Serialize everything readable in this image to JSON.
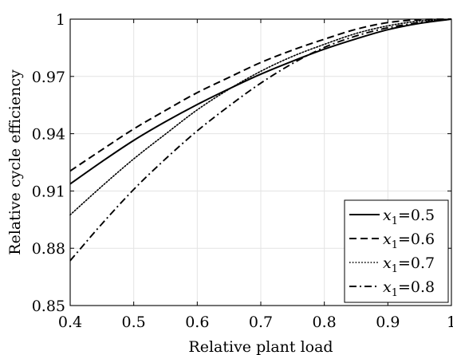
{
  "chart_data": {
    "type": "line",
    "xlabel": "Relative plant load",
    "ylabel": "Relative cycle efficiency",
    "xlim": [
      0.4,
      1.0
    ],
    "ylim": [
      0.85,
      1.0
    ],
    "x_ticks": [
      "0.4",
      "0.5",
      "0.6",
      "0.7",
      "0.8",
      "0.9",
      "1"
    ],
    "y_ticks": [
      "0.85",
      "0.88",
      "0.91",
      "0.94",
      "0.97",
      "1"
    ],
    "x_tick_values": [
      0.4,
      0.5,
      0.6,
      0.7,
      0.8,
      0.9,
      1.0
    ],
    "y_tick_values": [
      0.85,
      0.88,
      0.91,
      0.94,
      0.97,
      1.0
    ],
    "grid": true,
    "legend_position": "bottom-right",
    "series": [
      {
        "name": "x1=0.5",
        "legend_sub": "1",
        "legend_value": "=0.5",
        "line_style": "solid",
        "x": [
          0.4,
          0.45,
          0.5,
          0.55,
          0.6,
          0.65,
          0.7,
          0.75,
          0.8,
          0.85,
          0.9,
          0.95,
          1.0
        ],
        "y": [
          0.9137,
          0.9254,
          0.9365,
          0.9463,
          0.9553,
          0.9635,
          0.9712,
          0.978,
          0.9843,
          0.9897,
          0.9945,
          0.9978,
          1.0
        ]
      },
      {
        "name": "x1=0.6",
        "legend_sub": "1",
        "legend_value": "=0.6",
        "line_style": "dashed",
        "x": [
          0.4,
          0.45,
          0.5,
          0.55,
          0.6,
          0.65,
          0.7,
          0.75,
          0.8,
          0.85,
          0.9,
          0.95,
          1.0
        ],
        "y": [
          0.9205,
          0.9316,
          0.9425,
          0.9522,
          0.9615,
          0.9695,
          0.9773,
          0.9838,
          0.9895,
          0.9947,
          0.9982,
          0.9997,
          1.0
        ]
      },
      {
        "name": "x1=0.7",
        "legend_sub": "1",
        "legend_value": "=0.7",
        "line_style": "dotted",
        "x": [
          0.4,
          0.45,
          0.5,
          0.55,
          0.6,
          0.65,
          0.7,
          0.75,
          0.8,
          0.85,
          0.9,
          0.95,
          1.0
        ],
        "y": [
          0.8975,
          0.9125,
          0.9268,
          0.9398,
          0.9525,
          0.9633,
          0.9727,
          0.9805,
          0.9868,
          0.9925,
          0.9965,
          0.999,
          1.0
        ]
      },
      {
        "name": "x1=0.8",
        "legend_sub": "1",
        "legend_value": "=0.8",
        "line_style": "dashdot",
        "x": [
          0.4,
          0.45,
          0.5,
          0.55,
          0.6,
          0.65,
          0.7,
          0.75,
          0.8,
          0.85,
          0.9,
          0.95,
          1.0
        ],
        "y": [
          0.8735,
          0.8928,
          0.9108,
          0.9268,
          0.9415,
          0.9545,
          0.9665,
          0.9768,
          0.9852,
          0.9912,
          0.9955,
          0.9982,
          1.0
        ]
      }
    ]
  }
}
